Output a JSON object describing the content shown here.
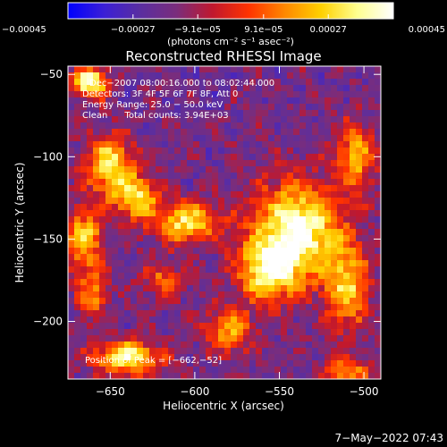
{
  "chart_data": {
    "type": "heatmap",
    "title": "Reconstructed RHESSI Image",
    "xlabel": "Heliocentric X (arcsec)",
    "ylabel": "Heliocentric Y (arcsec)",
    "xlim": [
      -675,
      -490
    ],
    "ylim": [
      -235,
      -45
    ],
    "x_ticks": [
      -650,
      -600,
      -550,
      -500
    ],
    "x_tick_labels": [
      "−650",
      "−600",
      "−550",
      "−500"
    ],
    "y_ticks": [
      -50,
      -100,
      -150,
      -200
    ],
    "y_tick_labels": [
      "−50",
      "−100",
      "−150",
      "−200"
    ],
    "colorbar": {
      "min": -0.00045,
      "max": 0.00045,
      "ticks": [
        -0.00045,
        -0.00027,
        -9.1e-05,
        9.1e-05,
        0.00027,
        0.00045
      ],
      "tick_labels": [
        "−0.00045",
        "−0.00027",
        "−9.1e−05",
        "9.1e−05",
        "0.00027",
        "0.00045"
      ],
      "units": "(photons cm⁻² s⁻¹ asec⁻²)",
      "colors": [
        "#0000ff",
        "#3b1fd6",
        "#5a2ea0",
        "#7a2d7c",
        "#c0182e",
        "#ff3300",
        "#ff8800",
        "#ffd000",
        "#ffff90",
        "#ffffff"
      ]
    },
    "annotations": [
      "Dec−2007 08:00:16.000 to 08:02:44.000",
      "Detectors: 3F 4F 5F 6F 7F 8F, Att 0",
      "Energy Range: 25.0 − 50.0 keV",
      "Clean      Total counts: 3.94E+03"
    ],
    "peak_label": "Position of Peak = [−662,−52]",
    "peak": [
      -662,
      -52
    ],
    "sources": [
      {
        "x": -540,
        "y": -145,
        "sx": 18,
        "sy": 20,
        "amp": 1.0
      },
      {
        "x": -557,
        "y": -170,
        "sx": 12,
        "sy": 12,
        "amp": 0.75
      },
      {
        "x": -650,
        "y": -105,
        "sx": 10,
        "sy": 12,
        "amp": 0.8
      },
      {
        "x": -635,
        "y": -125,
        "sx": 9,
        "sy": 9,
        "amp": 0.7
      },
      {
        "x": -605,
        "y": -140,
        "sx": 14,
        "sy": 9,
        "amp": 0.75
      },
      {
        "x": -662,
        "y": -55,
        "sx": 7,
        "sy": 7,
        "amp": 0.95
      },
      {
        "x": -665,
        "y": -150,
        "sx": 8,
        "sy": 14,
        "amp": 0.65
      },
      {
        "x": -640,
        "y": -222,
        "sx": 14,
        "sy": 7,
        "amp": 0.85
      },
      {
        "x": -660,
        "y": -185,
        "sx": 6,
        "sy": 10,
        "amp": 0.5
      },
      {
        "x": -510,
        "y": -180,
        "sx": 9,
        "sy": 18,
        "amp": 0.65
      },
      {
        "x": -505,
        "y": -100,
        "sx": 8,
        "sy": 14,
        "amp": 0.6
      },
      {
        "x": -580,
        "y": -205,
        "sx": 10,
        "sy": 10,
        "amp": 0.55
      },
      {
        "x": -510,
        "y": -230,
        "sx": 10,
        "sy": 6,
        "amp": 0.55
      },
      {
        "x": -620,
        "y": -175,
        "sx": 8,
        "sy": 8,
        "amp": 0.4
      }
    ]
  },
  "footer": {
    "timestamp": "7−May−2022 07:43"
  }
}
